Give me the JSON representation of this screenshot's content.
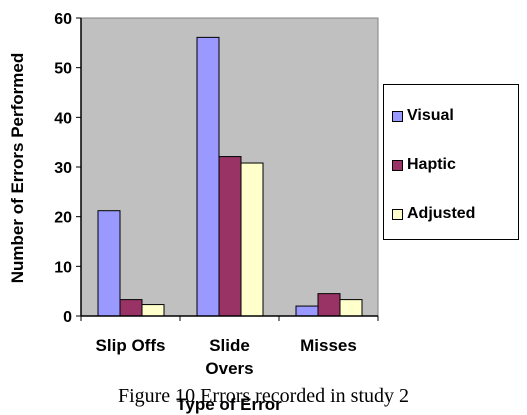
{
  "chart_data": {
    "type": "bar",
    "categories": [
      [
        "Slip Offs"
      ],
      [
        "Slide",
        "Overs"
      ],
      [
        "Misses"
      ]
    ],
    "series": [
      {
        "name": "Visual",
        "color": "#9999ff",
        "values": [
          21.2,
          56.1,
          2.0
        ]
      },
      {
        "name": "Haptic",
        "color": "#993366",
        "values": [
          3.3,
          32.1,
          4.5
        ]
      },
      {
        "name": "Adjusted",
        "color": "#ffffcc",
        "values": [
          2.3,
          30.8,
          3.3
        ]
      }
    ],
    "xlabel": "Type of Error",
    "ylabel": "Number of Errors Performed",
    "ylim": [
      0,
      60
    ],
    "yticks": [
      0,
      10,
      20,
      30,
      40,
      50,
      60
    ],
    "plot_background": "#c0c0c0",
    "grid": false,
    "legend_position": "right"
  },
  "caption": "Figure 10 Errors recorded in study 2"
}
